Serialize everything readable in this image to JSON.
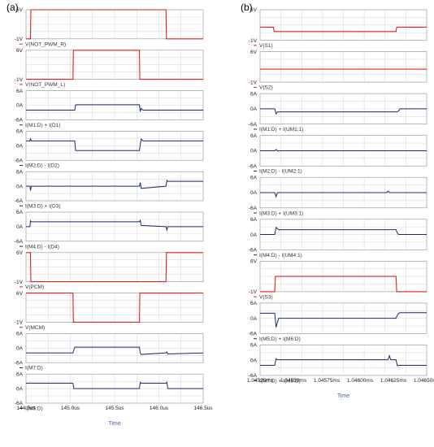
{
  "panel_labels": {
    "left": "(a)",
    "right": "(b)"
  },
  "colors": {
    "voltage": "#e0201b",
    "current": "#1b2a6b",
    "grid": "#d6d6d6",
    "frame": "#9a9a9a"
  },
  "chart_data": [
    {
      "type": "line",
      "panel": "(a)",
      "xlabel": "Time",
      "x_ticks": [
        "144.5us",
        "145.0us",
        "145.5us",
        "146.0us",
        "146.5us"
      ],
      "xlim": [
        144.5,
        146.5
      ],
      "x_unit": "us",
      "grid": true,
      "subplots": [
        {
          "trace": "V(NOT_PWM_R)",
          "kind": "voltage",
          "y_ticks": [
            "6V",
            "-1V"
          ],
          "ylim": [
            -1,
            6
          ],
          "series": [
            {
              "name": "V(NOT_PWM_R)",
              "x": [
                144.5,
                144.55,
                144.555,
                146.08,
                146.085,
                146.5
              ],
              "y": [
                -1,
                -1,
                6,
                6,
                -1,
                -1
              ]
            }
          ]
        },
        {
          "trace": "V(NOT_PWM_L)",
          "kind": "voltage",
          "y_ticks": [
            "6V",
            "-1V"
          ],
          "ylim": [
            -1,
            6
          ],
          "series": [
            {
              "name": "V(NOT_PWM_L)",
              "x": [
                144.5,
                145.03,
                145.035,
                145.78,
                145.785,
                146.5
              ],
              "y": [
                -1,
                -1,
                6,
                6,
                -1,
                -1
              ]
            }
          ]
        },
        {
          "trace": "I(M1:D) + I(D1)",
          "kind": "current",
          "y_ticks": [
            "6A",
            "0A",
            "-6A"
          ],
          "ylim": [
            -6,
            6
          ],
          "series": [
            {
              "name": "I(M1:D) + I(D1)",
              "x": [
                144.5,
                145.05,
                145.06,
                145.78,
                145.79,
                145.8,
                145.82,
                146.5
              ],
              "y": [
                -2,
                -2,
                0.2,
                0.2,
                -2.6,
                -1.3,
                -2,
                -2
              ]
            }
          ]
        },
        {
          "trace": "I(M2:D) - I(D2)",
          "kind": "current",
          "y_ticks": [
            "6A",
            "0A",
            "-6A"
          ],
          "ylim": [
            -6,
            6
          ],
          "series": [
            {
              "name": "I(M2:D) - I(D2)",
              "x": [
                144.5,
                144.545,
                144.55,
                144.56,
                145.05,
                145.06,
                145.78,
                145.79,
                145.8,
                145.82,
                146.5
              ],
              "y": [
                2,
                2,
                2.8,
                2,
                2,
                -2,
                -2,
                0.5,
                2.8,
                2,
                2
              ]
            }
          ]
        },
        {
          "trace": "I(M3:D) + I(D3)",
          "kind": "current",
          "y_ticks": [
            "6A",
            "0A",
            "-6A"
          ],
          "ylim": [
            -6,
            6
          ],
          "series": [
            {
              "name": "I(M3:D) + I(D3)",
              "x": [
                144.5,
                144.545,
                144.55,
                144.56,
                145.78,
                145.79,
                145.8,
                146.08,
                146.09,
                146.1,
                146.5
              ],
              "y": [
                0,
                0,
                -1.8,
                0,
                0,
                1.5,
                -0.9,
                0,
                2.4,
                2,
                2
              ]
            }
          ]
        },
        {
          "trace": "I(M4:D) - I(D4)",
          "kind": "current",
          "y_ticks": [
            "6A",
            "0A",
            "-6A"
          ],
          "ylim": [
            -6,
            6
          ],
          "series": [
            {
              "name": "I(M4:D) - I(D4)",
              "x": [
                144.5,
                144.545,
                144.55,
                144.56,
                145.78,
                145.79,
                145.8,
                146.08,
                146.09,
                146.1,
                146.5
              ],
              "y": [
                0,
                0,
                2.4,
                2,
                2,
                2.6,
                0.5,
                0,
                -1.4,
                0,
                0
              ]
            }
          ]
        },
        {
          "trace": "V(PCM)",
          "kind": "voltage",
          "y_ticks": [
            "6V",
            "-1V"
          ],
          "ylim": [
            -1,
            6
          ],
          "series": [
            {
              "name": "V(PCM)",
              "x": [
                144.5,
                144.55,
                144.555,
                146.08,
                146.085,
                146.5
              ],
              "y": [
                6,
                6,
                -1,
                -1,
                6,
                6
              ]
            }
          ]
        },
        {
          "trace": "V(MCM)",
          "kind": "voltage",
          "y_ticks": [
            "6V",
            "-1V"
          ],
          "ylim": [
            -1,
            6
          ],
          "series": [
            {
              "name": "V(MCM)",
              "x": [
                144.5,
                145.03,
                145.035,
                145.78,
                145.785,
                146.5
              ],
              "y": [
                6,
                6,
                -1,
                -1,
                6,
                6
              ]
            }
          ]
        },
        {
          "trace": "I(M7:D)",
          "kind": "current",
          "y_ticks": [
            "6A",
            "0A",
            "-6A"
          ],
          "ylim": [
            -6,
            6
          ],
          "series": [
            {
              "name": "I(M7:D)",
              "x": [
                144.5,
                144.55,
                144.56,
                145.03,
                145.05,
                145.78,
                145.79,
                145.8,
                146.08,
                146.09,
                146.1,
                146.5
              ],
              "y": [
                -2,
                -2,
                -2,
                -2,
                0.4,
                0.4,
                -2,
                -2.6,
                -2,
                -1.6,
                -2.4,
                -2
              ]
            }
          ]
        },
        {
          "trace": "I(M5:D)",
          "kind": "current",
          "y_ticks": [
            "6A",
            "0A",
            "-6A"
          ],
          "ylim": [
            -6,
            6
          ],
          "series": [
            {
              "name": "I(M5:D)",
              "x": [
                144.5,
                144.545,
                144.55,
                144.56,
                145.03,
                145.04,
                145.78,
                145.79,
                145.8,
                146.08,
                146.09,
                146.1,
                146.5
              ],
              "y": [
                2.2,
                2.2,
                2.4,
                2.2,
                2.2,
                0,
                0,
                2.6,
                2.2,
                2.2,
                2.6,
                0,
                0
              ]
            }
          ]
        }
      ]
    },
    {
      "type": "line",
      "panel": "(b)",
      "xlabel": "Time",
      "x_ticks": [
        "1.04525ms",
        "1.04550ms",
        "1.04575ms",
        "1.04600ms",
        "1.04625ms",
        "1.04650ms"
      ],
      "xlim": [
        1.04525,
        1.0465
      ],
      "x_unit": "ms",
      "grid": true,
      "subplots": [
        {
          "trace": "V(S1)",
          "kind": "voltage",
          "y_ticks": [
            "6V",
            "-1V"
          ],
          "ylim": [
            -1,
            6
          ],
          "series": [
            {
              "name": "V(S1)",
              "x": [
                1.04525,
                1.04535,
                1.045355,
                1.04627,
                1.046275,
                1.0465
              ],
              "y": [
                2,
                2,
                1,
                1,
                2,
                2
              ]
            }
          ]
        },
        {
          "trace": "V(S2)",
          "kind": "voltage",
          "y_ticks": [
            "6V",
            "-1V"
          ],
          "ylim": [
            -1,
            6
          ],
          "series": [
            {
              "name": "V(S2)",
              "x": [
                1.04525,
                1.0465
              ],
              "y": [
                2,
                2
              ]
            }
          ]
        },
        {
          "trace": "I(M1:D) + I(UM1:1)",
          "kind": "current",
          "y_ticks": [
            "6A",
            "0A",
            "-6A"
          ],
          "ylim": [
            -6,
            6
          ],
          "series": [
            {
              "name": "I(M1:D) + I(UM1:1)",
              "x": [
                1.04525,
                1.04536,
                1.04537,
                1.04538,
                1.0454,
                1.04628,
                1.04629,
                1.0463,
                1.0465
              ],
              "y": [
                0,
                0,
                -2,
                -1.2,
                -1.2,
                -1.2,
                -0.8,
                0,
                0
              ]
            }
          ]
        },
        {
          "trace": "I(M2:D) - I(UM2:1)",
          "kind": "current",
          "y_ticks": [
            "6A",
            "0A",
            "-6A"
          ],
          "ylim": [
            -6,
            6
          ],
          "series": [
            {
              "name": "I(M2:D) - I(UM2:1)",
              "x": [
                1.04525,
                1.04536,
                1.04537,
                1.04538,
                1.0465
              ],
              "y": [
                0,
                0,
                0.5,
                0,
                0
              ]
            }
          ]
        },
        {
          "trace": "I(M3:D) + I(UM3:1)",
          "kind": "current",
          "y_ticks": [
            "6A",
            "0A",
            "-6A"
          ],
          "ylim": [
            -6,
            6
          ],
          "series": [
            {
              "name": "I(M3:D) + I(UM3:1)",
              "x": [
                1.04525,
                1.04536,
                1.04537,
                1.04538,
                1.0462,
                1.04621,
                1.04622,
                1.0465
              ],
              "y": [
                0,
                0,
                -1.6,
                0,
                0,
                0.6,
                0,
                0
              ]
            }
          ]
        },
        {
          "trace": "I(M4:D) - I(UM4:1)",
          "kind": "current",
          "y_ticks": [
            "6A",
            "0A",
            "-6A"
          ],
          "ylim": [
            -6,
            6
          ],
          "series": [
            {
              "name": "I(M4:D) - I(UM4:1)",
              "x": [
                1.04525,
                1.04536,
                1.04537,
                1.04539,
                1.04627,
                1.04628,
                1.04629,
                1.0465
              ],
              "y": [
                0,
                0,
                2.8,
                1.9,
                1.9,
                0.6,
                0,
                0
              ]
            }
          ]
        },
        {
          "trace": "V(S3)",
          "kind": "voltage",
          "y_ticks": [
            "6V",
            "-1V"
          ],
          "ylim": [
            -1,
            6
          ],
          "series": [
            {
              "name": "V(S3)",
              "x": [
                1.04525,
                1.04536,
                1.045365,
                1.04627,
                1.046275,
                1.0465
              ],
              "y": [
                -1,
                -1,
                2.5,
                2.5,
                -1,
                -1
              ]
            }
          ]
        },
        {
          "trace": "I(M5:D) + I(M6:D)",
          "kind": "current",
          "y_ticks": [
            "6A",
            "0A",
            "-6A"
          ],
          "ylim": [
            -6,
            6
          ],
          "series": [
            {
              "name": "I(M5:D) + I(M6:D)",
              "x": [
                1.04525,
                1.04536,
                1.04537,
                1.04538,
                1.04539,
                1.04627,
                1.04628,
                1.04629,
                1.0463,
                1.0465
              ],
              "y": [
                2,
                2,
                -3.5,
                -1.5,
                0,
                0,
                1.2,
                2,
                2.2,
                2.2
              ]
            }
          ]
        },
        {
          "trace": "I(M7:D) + I(M8:D)",
          "kind": "current",
          "y_ticks": [
            "6A",
            "0A",
            "-6A"
          ],
          "ylim": [
            -6,
            6
          ],
          "series": [
            {
              "name": "I(M7:D) + I(M8:D)",
              "x": [
                1.04525,
                1.04536,
                1.04537,
                1.04538,
                1.04621,
                1.04622,
                1.04623,
                1.04627,
                1.04628,
                1.04629,
                1.0465
              ],
              "y": [
                -2,
                -2,
                0.6,
                0.2,
                0.2,
                1.8,
                0.2,
                0.2,
                -2.2,
                -2,
                -2
              ]
            }
          ]
        }
      ]
    }
  ]
}
